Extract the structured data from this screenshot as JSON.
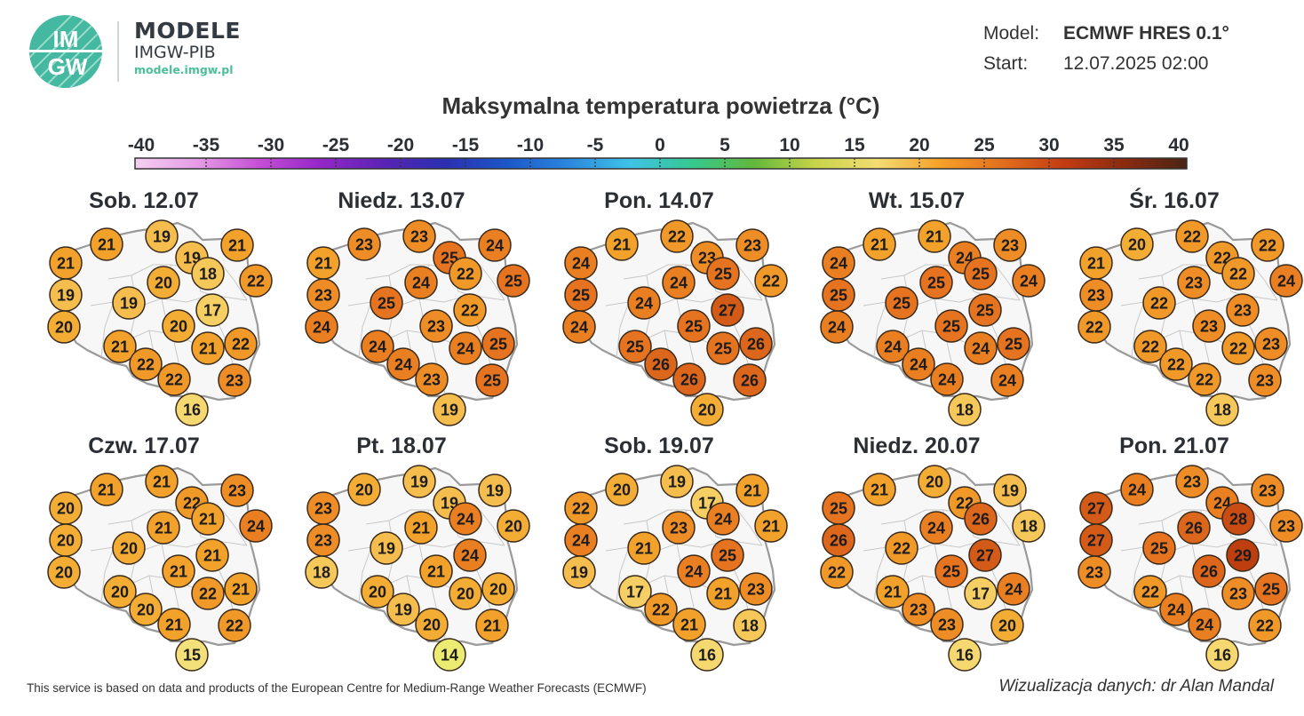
{
  "brand": {
    "logo_text_top": "IM",
    "logo_text_bottom": "GW",
    "name": "MODELE",
    "org": "IMGW-PIB",
    "url": "modele.imgw.pl"
  },
  "model_info": {
    "model_label": "Model:",
    "model_value": "ECMWF HRES 0.1°",
    "start_label": "Start:",
    "start_value": "12.07.2025 02:00"
  },
  "title": "Maksymalna temperatura powietrza (°C)",
  "legend": {
    "ticks": [
      "-40",
      "-35",
      "-30",
      "-25",
      "-20",
      "-15",
      "-10",
      "-5",
      "0",
      "5",
      "10",
      "15",
      "20",
      "25",
      "30",
      "35",
      "40"
    ],
    "stops": [
      "#f6cff2",
      "#e69ce6",
      "#c54fd6",
      "#9426c8",
      "#5b23b5",
      "#2a2fb0",
      "#1c56c9",
      "#2b86dd",
      "#3fc3e8",
      "#35c98f",
      "#62b93a",
      "#c8d44a",
      "#f3dc72",
      "#f6a12a",
      "#e3701c",
      "#c43c12",
      "#8a2a10",
      "#4a2414"
    ]
  },
  "panels": [
    {
      "date": "Sob. 12.07",
      "values": [
        21,
        19,
        21,
        21,
        19,
        22,
        20,
        18,
        19,
        19,
        17,
        20,
        20,
        21,
        21,
        22,
        22,
        22,
        23,
        16
      ]
    },
    {
      "date": "Niedz. 13.07",
      "values": [
        23,
        23,
        24,
        21,
        25,
        25,
        24,
        22,
        23,
        25,
        22,
        24,
        23,
        24,
        24,
        25,
        24,
        23,
        25,
        19
      ]
    },
    {
      "date": "Pon. 14.07",
      "values": [
        21,
        22,
        23,
        24,
        23,
        22,
        24,
        25,
        25,
        24,
        27,
        24,
        25,
        25,
        25,
        26,
        26,
        26,
        26,
        20
      ]
    },
    {
      "date": "Wt. 15.07",
      "values": [
        21,
        21,
        23,
        24,
        24,
        24,
        25,
        25,
        25,
        25,
        25,
        24,
        25,
        24,
        24,
        25,
        24,
        24,
        24,
        18
      ]
    },
    {
      "date": "Śr. 16.07",
      "values": [
        20,
        22,
        22,
        21,
        22,
        24,
        23,
        22,
        23,
        22,
        23,
        22,
        23,
        22,
        22,
        23,
        22,
        22,
        23,
        18
      ]
    },
    {
      "date": "Czw. 17.07",
      "values": [
        21,
        21,
        23,
        20,
        22,
        24,
        21,
        21,
        20,
        20,
        21,
        20,
        21,
        20,
        22,
        21,
        20,
        21,
        22,
        15
      ]
    },
    {
      "date": "Pt. 18.07",
      "values": [
        20,
        19,
        19,
        23,
        19,
        20,
        21,
        24,
        23,
        19,
        24,
        18,
        21,
        20,
        20,
        20,
        19,
        20,
        21,
        14
      ]
    },
    {
      "date": "Sob. 19.07",
      "values": [
        20,
        19,
        21,
        22,
        17,
        21,
        23,
        24,
        24,
        21,
        25,
        19,
        24,
        17,
        21,
        23,
        22,
        21,
        18,
        16
      ]
    },
    {
      "date": "Niedz. 20.07",
      "values": [
        21,
        20,
        19,
        25,
        22,
        18,
        24,
        26,
        26,
        22,
        27,
        22,
        25,
        21,
        17,
        24,
        23,
        23,
        20,
        16
      ]
    },
    {
      "date": "Pon. 21.07",
      "values": [
        24,
        23,
        23,
        27,
        24,
        23,
        26,
        28,
        27,
        25,
        29,
        23,
        26,
        22,
        23,
        25,
        24,
        24,
        22,
        16
      ]
    }
  ],
  "footer": {
    "source": "This service is based on data and products of the European Centre for Medium-Range Weather Forecasts (ECMWF)",
    "credit": "Wizualizacja danych: dr Alan Mandal"
  }
}
